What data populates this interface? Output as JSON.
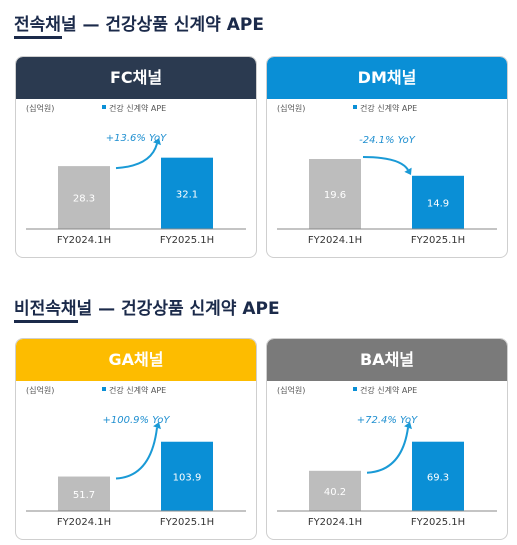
{
  "sections": [
    {
      "title": "전속채널 — 건강상품 신계약 APE"
    },
    {
      "title": "비전속채널 — 건강상품 신계약 APE"
    }
  ],
  "colors": {
    "prev_bar": "#bdbdbd",
    "curr_bar": "#0a8fd6",
    "arrow": "#1a9ad6",
    "title_text": "#1b2a4a"
  },
  "chart_data": [
    {
      "type": "bar",
      "title": "FC채널",
      "header_color": "#2b3a50",
      "unit": "(십억원)",
      "legend": "건강 신계약 APE",
      "categories": [
        "FY2024.1H",
        "FY2025.1H"
      ],
      "values": [
        28.3,
        32.1
      ],
      "value_labels": [
        "28.3",
        "32.1"
      ],
      "annotation": "+13.6% YoY",
      "ylim": [
        0,
        45
      ]
    },
    {
      "type": "bar",
      "title": "DM채널",
      "header_color": "#0a8fd6",
      "unit": "(십억원)",
      "legend": "건강 신계약 APE",
      "categories": [
        "FY2024.1H",
        "FY2025.1H"
      ],
      "values": [
        19.6,
        14.9
      ],
      "value_labels": [
        "19.6",
        "14.9"
      ],
      "annotation": "-24.1% YoY",
      "ylim": [
        0,
        28
      ]
    },
    {
      "type": "bar",
      "title": "GA채널",
      "header_color": "#fdbc00",
      "unit": "(십억원)",
      "legend": "건강 신계약 APE",
      "categories": [
        "FY2024.1H",
        "FY2025.1H"
      ],
      "values": [
        51.7,
        103.9
      ],
      "value_labels": [
        "51.7",
        "103.9"
      ],
      "annotation": "+100.9% YoY",
      "ylim": [
        0,
        150
      ]
    },
    {
      "type": "bar",
      "title": "BA채널",
      "header_color": "#7a7a7a",
      "unit": "(십억원)",
      "legend": "건강 신계약 APE",
      "categories": [
        "FY2024.1H",
        "FY2025.1H"
      ],
      "values": [
        40.2,
        69.3
      ],
      "value_labels": [
        "40.2",
        "69.3"
      ],
      "annotation": "+72.4% YoY",
      "ylim": [
        0,
        100
      ]
    }
  ]
}
